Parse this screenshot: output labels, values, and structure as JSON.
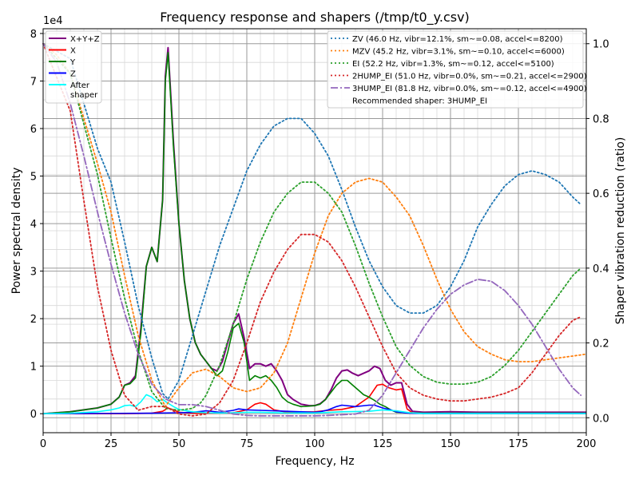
{
  "chart_data": {
    "type": "line",
    "title": "Frequency response and shapers (/tmp/t0_y.csv)",
    "xlabel": "Frequency, Hz",
    "ylabel": "Power spectral density",
    "y2label": "Shaper vibration reduction (ratio)",
    "y_exponent_label": "1e4",
    "xlim": [
      0,
      200
    ],
    "ylim": [
      -4000,
      81000
    ],
    "y2lim": [
      -0.04,
      1.04
    ],
    "x_ticks": [
      0,
      25,
      50,
      75,
      100,
      125,
      150,
      175,
      200
    ],
    "y_ticks": [
      0,
      10000,
      20000,
      30000,
      40000,
      50000,
      60000,
      70000,
      80000
    ],
    "y_tick_labels": [
      "0",
      "1",
      "2",
      "3",
      "4",
      "5",
      "6",
      "7",
      "8"
    ],
    "y2_ticks": [
      0,
      0.2,
      0.4,
      0.6,
      0.8,
      1.0
    ],
    "y2_tick_labels": [
      "0.0",
      "0.2",
      "0.4",
      "0.6",
      "0.8",
      "1.0"
    ],
    "grid": true,
    "psd_legend_placement": "upper-left",
    "shaper_legend_placement": "upper-right",
    "psd_series": [
      {
        "name": "X+Y+Z",
        "color": "#800080",
        "x": [
          0,
          10,
          20,
          25,
          28,
          30,
          32,
          34,
          36,
          38,
          40,
          42,
          44,
          45,
          46,
          48,
          50,
          52,
          54,
          56,
          58,
          60,
          62,
          64,
          66,
          68,
          70,
          72,
          74,
          76,
          78,
          80,
          82,
          84,
          86,
          88,
          90,
          92,
          95,
          98,
          100,
          102,
          104,
          106,
          108,
          110,
          112,
          114,
          116,
          118,
          120,
          122,
          124,
          126,
          128,
          130,
          132,
          134,
          136,
          140,
          150,
          160,
          170,
          180,
          190,
          200
        ],
        "y": [
          0,
          400,
          1200,
          2000,
          3500,
          6000,
          6500,
          8000,
          18000,
          31000,
          35000,
          32000,
          45000,
          71000,
          77000,
          57000,
          40000,
          28000,
          20000,
          15000,
          12500,
          11000,
          9500,
          9000,
          11000,
          15000,
          19000,
          21000,
          16000,
          9500,
          10500,
          10500,
          10000,
          10500,
          9000,
          7000,
          4000,
          3000,
          2000,
          1700,
          1700,
          2100,
          3000,
          5000,
          7500,
          9000,
          9200,
          8500,
          8000,
          8500,
          9000,
          10000,
          9500,
          7000,
          6000,
          6500,
          6500,
          2000,
          500,
          300,
          400,
          300,
          300,
          300,
          300,
          300
        ]
      },
      {
        "name": "X",
        "color": "#ff0000",
        "x": [
          0,
          30,
          40,
          44,
          46,
          48,
          50,
          55,
          60,
          70,
          75,
          78,
          80,
          82,
          85,
          90,
          100,
          105,
          110,
          115,
          120,
          123,
          125,
          127,
          130,
          132,
          134,
          136,
          140,
          200
        ],
        "y": [
          0,
          0,
          100,
          500,
          1200,
          800,
          300,
          100,
          100,
          200,
          800,
          2000,
          2300,
          2000,
          800,
          300,
          400,
          700,
          900,
          1500,
          3500,
          6000,
          6200,
          5500,
          5000,
          5200,
          1000,
          200,
          50,
          50
        ]
      },
      {
        "name": "Y",
        "color": "#008000",
        "x": [
          0,
          10,
          20,
          25,
          28,
          30,
          32,
          34,
          36,
          38,
          40,
          42,
          44,
          45,
          46,
          48,
          50,
          52,
          54,
          56,
          58,
          60,
          62,
          64,
          66,
          68,
          70,
          72,
          74,
          76,
          78,
          80,
          82,
          84,
          86,
          88,
          90,
          92,
          95,
          98,
          100,
          102,
          104,
          106,
          108,
          110,
          112,
          114,
          116,
          118,
          120,
          122,
          124,
          126,
          128,
          130,
          134,
          140,
          200
        ],
        "y": [
          0,
          400,
          1200,
          2000,
          3500,
          6000,
          6300,
          7500,
          17000,
          31000,
          35000,
          32000,
          45000,
          70000,
          76000,
          56000,
          40000,
          28000,
          20000,
          15000,
          12500,
          11000,
          9500,
          8000,
          9000,
          13000,
          18000,
          19000,
          15000,
          7000,
          8000,
          7500,
          8000,
          7000,
          5500,
          3500,
          2500,
          2000,
          1500,
          1600,
          1700,
          2000,
          3000,
          4500,
          6000,
          7000,
          7000,
          6000,
          5000,
          4000,
          3500,
          2800,
          2000,
          1500,
          800,
          300,
          200,
          100,
          100
        ]
      },
      {
        "name": "Z",
        "color": "#0000ff",
        "x": [
          0,
          40,
          50,
          55,
          60,
          62,
          65,
          70,
          72,
          75,
          80,
          85,
          90,
          95,
          100,
          102,
          105,
          108,
          110,
          115,
          120,
          122,
          125,
          128,
          130,
          133,
          135,
          140,
          200
        ],
        "y": [
          0,
          100,
          200,
          300,
          600,
          500,
          300,
          700,
          1000,
          800,
          700,
          600,
          500,
          400,
          300,
          400,
          800,
          1500,
          1800,
          1500,
          1800,
          1800,
          1200,
          800,
          400,
          200,
          100,
          50,
          50
        ]
      },
      {
        "name": "After\nshaper",
        "color": "#00ffff",
        "x": [
          0,
          10,
          20,
          25,
          28,
          30,
          32,
          34,
          36,
          38,
          40,
          42,
          44,
          46,
          48,
          50,
          55,
          60,
          65,
          70,
          75,
          80,
          90,
          100,
          110,
          120,
          125,
          130,
          135,
          140,
          200
        ],
        "y": [
          0,
          100,
          400,
          800,
          1200,
          1700,
          1800,
          1500,
          2500,
          4000,
          3500,
          2500,
          3000,
          2200,
          1500,
          900,
          400,
          200,
          150,
          200,
          300,
          300,
          150,
          150,
          400,
          500,
          800,
          600,
          200,
          50,
          50
        ]
      }
    ],
    "shaper_series": [
      {
        "name": "ZV (46.0 Hz, vibr=12.1%, sm~=0.08, accel<=8200)",
        "color": "#1f77b4",
        "style": "dotted",
        "x": [
          0,
          10,
          20,
          25,
          30,
          35,
          40,
          44,
          46,
          50,
          55,
          60,
          65,
          70,
          75,
          80,
          85,
          90,
          95,
          100,
          105,
          110,
          115,
          120,
          125,
          130,
          135,
          140,
          145,
          150,
          155,
          160,
          165,
          170,
          175,
          180,
          185,
          190,
          195,
          198
        ],
        "y": [
          1.0,
          0.96,
          0.72,
          0.63,
          0.47,
          0.3,
          0.16,
          0.065,
          0.05,
          0.1,
          0.22,
          0.34,
          0.46,
          0.56,
          0.66,
          0.73,
          0.78,
          0.8,
          0.8,
          0.76,
          0.7,
          0.61,
          0.51,
          0.42,
          0.35,
          0.3,
          0.28,
          0.28,
          0.3,
          0.35,
          0.42,
          0.51,
          0.57,
          0.62,
          0.65,
          0.66,
          0.65,
          0.63,
          0.59,
          0.57
        ]
      },
      {
        "name": "MZV (45.2 Hz, vibr=3.1%, sm~=0.10, accel<=6000)",
        "color": "#ff7f0e",
        "style": "dotted",
        "x": [
          0,
          5,
          10,
          15,
          20,
          25,
          30,
          35,
          40,
          45,
          50,
          55,
          60,
          65,
          70,
          75,
          80,
          85,
          90,
          95,
          100,
          105,
          110,
          115,
          120,
          125,
          130,
          135,
          140,
          145,
          150,
          155,
          160,
          165,
          170,
          175,
          180,
          185,
          190,
          195,
          200
        ],
        "y": [
          1.0,
          0.97,
          0.92,
          0.8,
          0.68,
          0.55,
          0.38,
          0.22,
          0.1,
          0.03,
          0.08,
          0.12,
          0.13,
          0.11,
          0.08,
          0.07,
          0.08,
          0.12,
          0.2,
          0.32,
          0.44,
          0.54,
          0.6,
          0.63,
          0.64,
          0.63,
          0.59,
          0.54,
          0.46,
          0.37,
          0.29,
          0.23,
          0.19,
          0.17,
          0.155,
          0.15,
          0.15,
          0.155,
          0.16,
          0.165,
          0.17
        ]
      },
      {
        "name": "EI (52.2 Hz, vibr=1.3%, sm~=0.12, accel<=5100)",
        "color": "#2ca02c",
        "style": "dotted",
        "x": [
          0,
          10,
          20,
          25,
          30,
          35,
          40,
          45,
          50,
          55,
          58,
          60,
          65,
          70,
          75,
          80,
          85,
          90,
          95,
          100,
          105,
          110,
          115,
          120,
          125,
          130,
          135,
          140,
          145,
          150,
          155,
          160,
          165,
          170,
          175,
          180,
          185,
          190,
          195,
          198
        ],
        "y": [
          1.0,
          0.92,
          0.65,
          0.48,
          0.32,
          0.18,
          0.07,
          0.025,
          0.02,
          0.025,
          0.04,
          0.06,
          0.14,
          0.25,
          0.37,
          0.47,
          0.55,
          0.6,
          0.63,
          0.63,
          0.6,
          0.55,
          0.46,
          0.36,
          0.27,
          0.19,
          0.14,
          0.11,
          0.095,
          0.09,
          0.09,
          0.095,
          0.11,
          0.14,
          0.18,
          0.23,
          0.28,
          0.33,
          0.38,
          0.4
        ]
      },
      {
        "name": "2HUMP_EI (51.0 Hz, vibr=0.0%, sm~=0.21, accel<=2900)",
        "color": "#d62728",
        "style": "dotted",
        "x": [
          0,
          10,
          15,
          20,
          25,
          30,
          35,
          40,
          45,
          50,
          55,
          60,
          65,
          70,
          75,
          80,
          85,
          90,
          95,
          100,
          105,
          110,
          115,
          120,
          125,
          130,
          135,
          140,
          145,
          150,
          155,
          160,
          165,
          170,
          175,
          180,
          185,
          190,
          195,
          198
        ],
        "y": [
          1.0,
          0.82,
          0.58,
          0.35,
          0.18,
          0.06,
          0.02,
          0.03,
          0.03,
          0.01,
          0.005,
          0.01,
          0.04,
          0.1,
          0.2,
          0.31,
          0.39,
          0.45,
          0.49,
          0.49,
          0.47,
          0.42,
          0.35,
          0.27,
          0.19,
          0.12,
          0.08,
          0.06,
          0.05,
          0.045,
          0.045,
          0.05,
          0.055,
          0.065,
          0.08,
          0.12,
          0.17,
          0.22,
          0.26,
          0.27
        ]
      },
      {
        "name": "3HUMP_EI (81.8 Hz, vibr=0.0%, sm~=0.12, accel<=4900)",
        "color": "#9467bd",
        "style": "dashdot",
        "x": [
          0,
          5,
          10,
          15,
          20,
          25,
          30,
          35,
          40,
          45,
          50,
          55,
          60,
          65,
          70,
          75,
          80,
          85,
          90,
          95,
          100,
          105,
          110,
          115,
          120,
          125,
          130,
          135,
          140,
          145,
          150,
          155,
          160,
          165,
          170,
          175,
          180,
          185,
          190,
          195,
          198
        ],
        "y": [
          1.0,
          0.95,
          0.84,
          0.7,
          0.55,
          0.41,
          0.28,
          0.17,
          0.09,
          0.05,
          0.035,
          0.035,
          0.03,
          0.02,
          0.01,
          0.006,
          0.005,
          0.005,
          0.005,
          0.005,
          0.005,
          0.006,
          0.008,
          0.01,
          0.02,
          0.06,
          0.12,
          0.18,
          0.24,
          0.29,
          0.33,
          0.355,
          0.37,
          0.365,
          0.34,
          0.3,
          0.25,
          0.19,
          0.13,
          0.08,
          0.06
        ]
      }
    ],
    "recommended_text": "Recommended shaper: 3HUMP_EI"
  }
}
